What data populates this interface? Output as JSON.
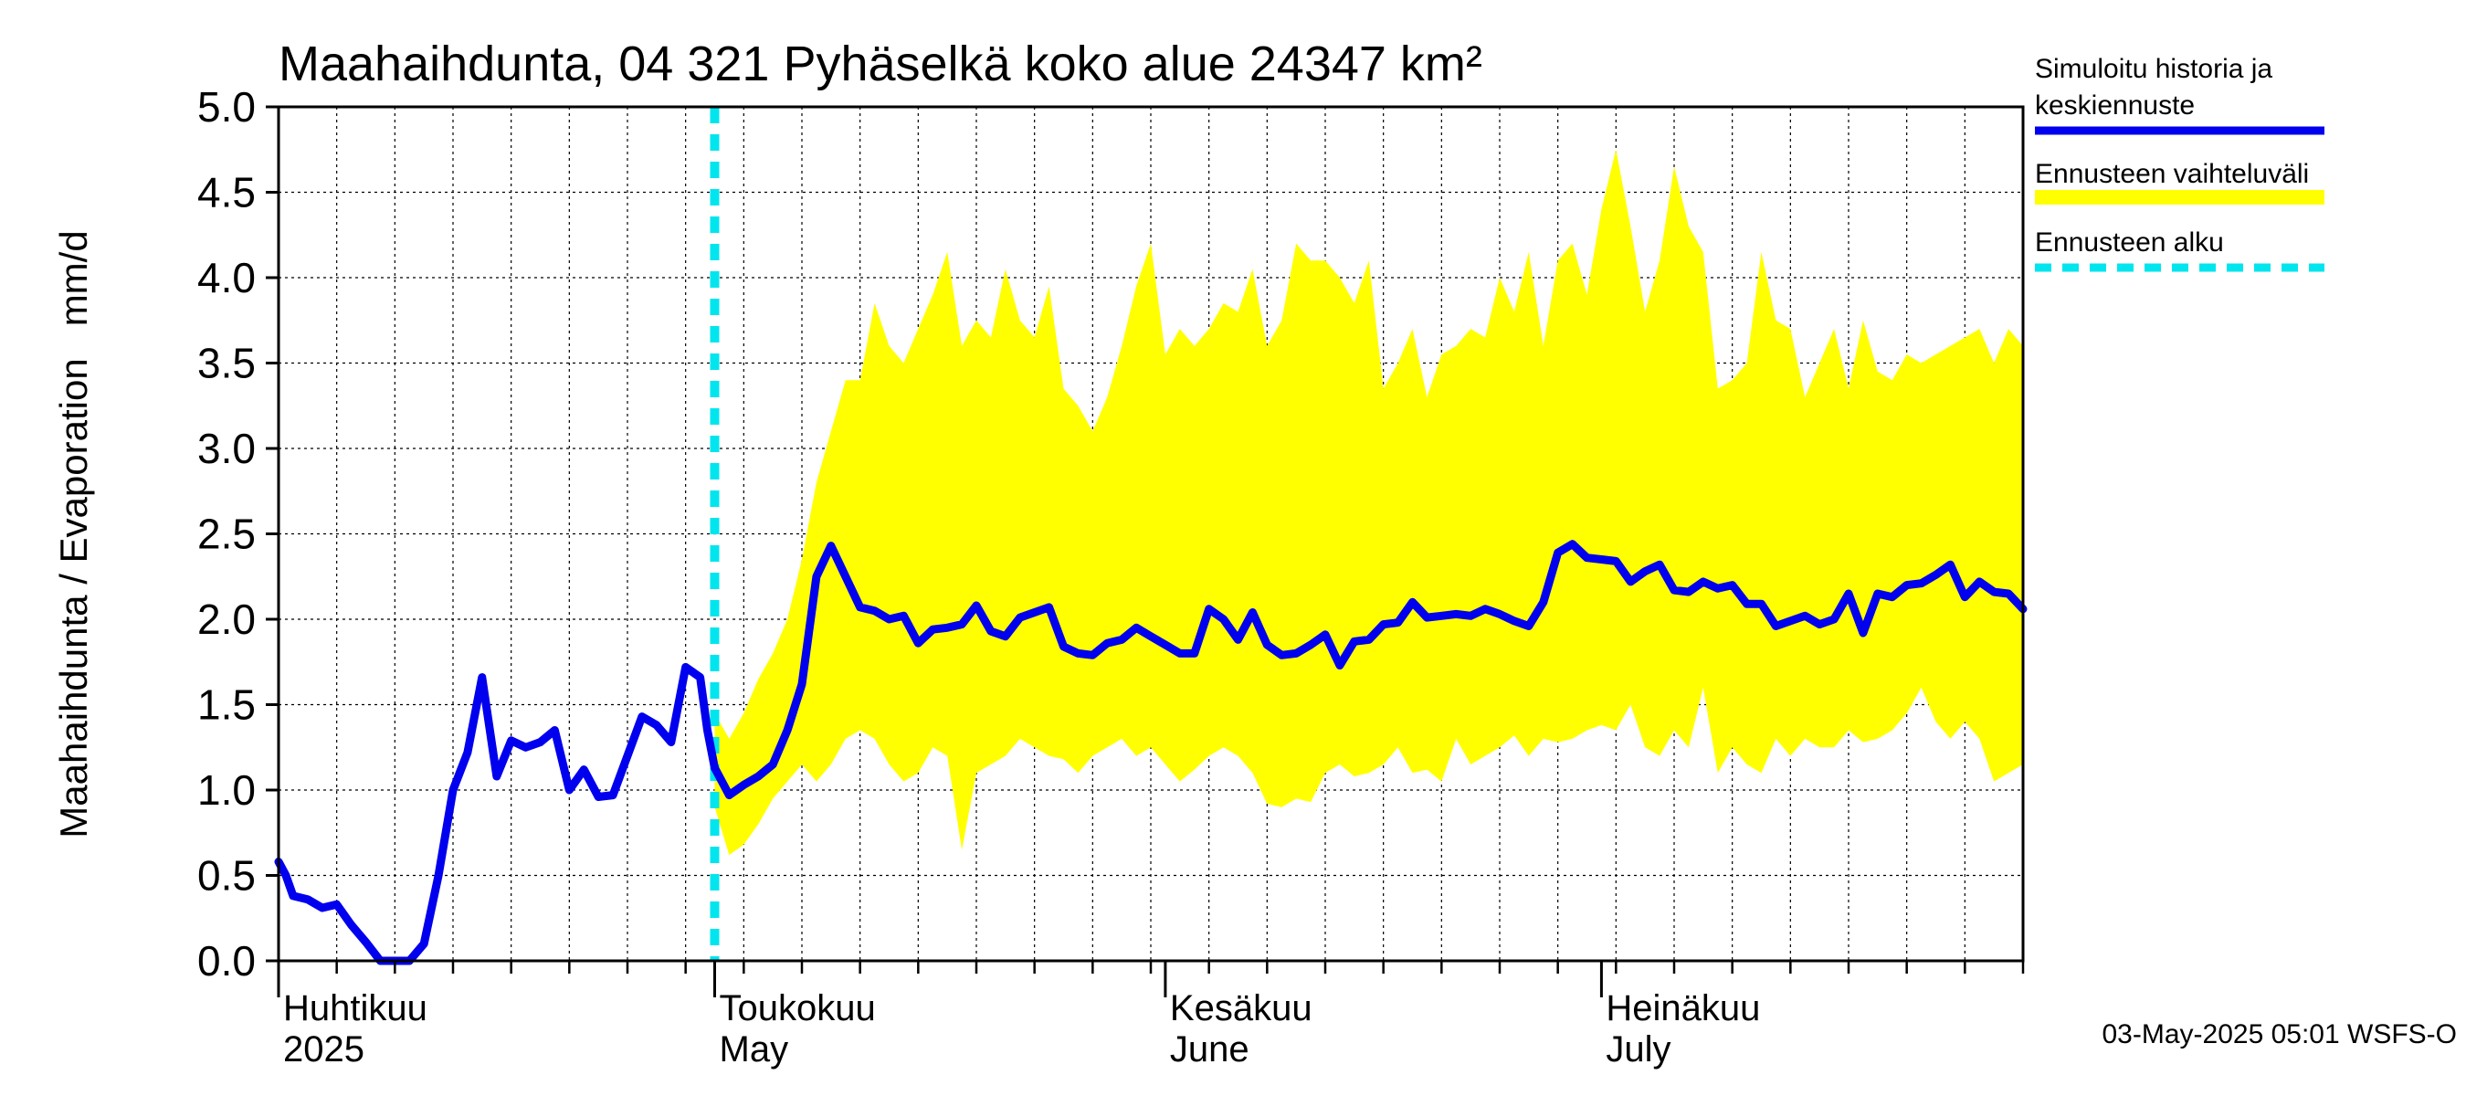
{
  "chart_data": {
    "type": "line",
    "title": "Maahaihdunta, 04 321 Pyhäselkä koko alue 24347 km²",
    "ylabel": "Maahaihdunta / Evaporation   mm/d",
    "ylim": [
      0,
      5
    ],
    "yticks": [
      "0.0",
      "0.5",
      "1.0",
      "1.5",
      "2.0",
      "2.5",
      "3.0",
      "3.5",
      "4.0",
      "4.5",
      "5.0"
    ],
    "x_start_day": 0,
    "x_end_day": 120,
    "forecast_start_day": 30,
    "month_labels": [
      {
        "day": 0,
        "line1": "Huhtikuu",
        "line2": "2025"
      },
      {
        "day": 30,
        "line1": "Toukokuu",
        "line2": "May"
      },
      {
        "day": 61,
        "line1": "Kesäkuu",
        "line2": "June"
      },
      {
        "day": 91,
        "line1": "Heinäkuu",
        "line2": "July"
      }
    ],
    "history": {
      "name": "Simuloitu historia ja keskiennuste",
      "color": "#0000ee",
      "x": [
        0,
        0.5,
        1,
        2,
        3,
        4,
        5,
        6,
        7,
        8,
        9,
        10,
        11,
        12,
        13,
        14,
        15,
        16,
        17,
        18,
        19,
        20,
        21,
        22,
        23,
        24,
        25,
        26,
        27,
        28,
        29,
        29.5,
        30
      ],
      "y": [
        0.58,
        0.5,
        0.38,
        0.36,
        0.31,
        0.33,
        0.21,
        0.11,
        0.0,
        0.0,
        0.0,
        0.1,
        0.5,
        1.0,
        1.22,
        1.66,
        1.08,
        1.29,
        1.25,
        1.28,
        1.35,
        1.0,
        1.12,
        0.96,
        0.97,
        1.2,
        1.43,
        1.38,
        1.28,
        1.72,
        1.66,
        1.35,
        1.13
      ]
    },
    "forecast_mean": {
      "x": [
        30,
        31,
        32,
        33,
        34,
        35,
        36,
        37,
        38,
        39,
        40,
        41,
        42,
        43,
        44,
        45,
        46,
        47,
        48,
        49,
        50,
        51,
        52,
        53,
        54,
        55,
        56,
        57,
        58,
        59,
        60,
        61,
        62,
        63,
        64,
        65,
        66,
        67,
        68,
        69,
        70,
        71,
        72,
        73,
        74,
        75,
        76,
        77,
        78,
        79,
        80,
        81,
        82,
        83,
        84,
        85,
        86,
        87,
        88,
        89,
        90,
        91,
        92,
        93,
        94,
        95,
        96,
        97,
        98,
        99,
        100,
        101,
        102,
        103,
        104,
        105,
        106,
        107,
        108,
        109,
        110,
        111,
        112,
        113,
        114,
        115,
        116,
        117,
        118,
        119,
        120
      ],
      "y": [
        1.13,
        0.97,
        1.03,
        1.08,
        1.15,
        1.35,
        1.62,
        2.25,
        2.43,
        2.25,
        2.07,
        2.05,
        2.0,
        2.02,
        1.86,
        1.94,
        1.95,
        1.97,
        2.08,
        1.93,
        1.9,
        2.01,
        2.04,
        2.07,
        1.84,
        1.8,
        1.79,
        1.86,
        1.88,
        1.95,
        1.9,
        1.85,
        1.8,
        1.8,
        2.06,
        2.0,
        1.88,
        2.04,
        1.85,
        1.79,
        1.8,
        1.85,
        1.91,
        1.73,
        1.87,
        1.88,
        1.97,
        1.98,
        2.1,
        2.01,
        2.02,
        2.03,
        2.02,
        2.06,
        2.03,
        1.99,
        1.96,
        2.1,
        2.39,
        2.44,
        2.36,
        2.35,
        2.34,
        2.22,
        2.28,
        2.32,
        2.17,
        2.16,
        2.22,
        2.18,
        2.2,
        2.09,
        2.09,
        1.96,
        1.99,
        2.02,
        1.97,
        2.0,
        2.15,
        1.92,
        2.15,
        2.13,
        2.2,
        2.21,
        2.26,
        2.32,
        2.13,
        2.22,
        2.16,
        2.15,
        2.06
      ]
    },
    "range_upper": {
      "x": [
        30,
        31,
        32,
        33,
        34,
        35,
        36,
        37,
        38,
        39,
        40,
        41,
        42,
        43,
        44,
        45,
        46,
        47,
        48,
        49,
        50,
        51,
        52,
        53,
        54,
        55,
        56,
        57,
        58,
        59,
        60,
        61,
        62,
        63,
        64,
        65,
        66,
        67,
        68,
        69,
        70,
        71,
        72,
        73,
        74,
        75,
        76,
        77,
        78,
        79,
        80,
        81,
        82,
        83,
        84,
        85,
        86,
        87,
        88,
        89,
        90,
        91,
        92,
        93,
        94,
        95,
        96,
        97,
        98,
        99,
        100,
        101,
        102,
        103,
        104,
        105,
        106,
        107,
        108,
        109,
        110,
        111,
        112,
        113,
        114,
        115,
        116,
        117,
        118,
        119,
        120
      ],
      "y": [
        1.45,
        1.3,
        1.45,
        1.65,
        1.8,
        2.0,
        2.35,
        2.8,
        3.1,
        3.4,
        3.4,
        3.85,
        3.6,
        3.5,
        3.7,
        3.9,
        4.15,
        3.6,
        3.75,
        3.65,
        4.05,
        3.75,
        3.65,
        3.95,
        3.35,
        3.25,
        3.1,
        3.3,
        3.6,
        3.95,
        4.2,
        3.55,
        3.7,
        3.6,
        3.7,
        3.85,
        3.8,
        4.05,
        3.6,
        3.75,
        4.2,
        4.1,
        4.1,
        4.0,
        3.85,
        4.1,
        3.35,
        3.5,
        3.7,
        3.3,
        3.55,
        3.6,
        3.7,
        3.65,
        4.0,
        3.8,
        4.15,
        3.6,
        4.1,
        4.2,
        3.9,
        4.4,
        4.75,
        4.3,
        3.8,
        4.1,
        4.65,
        4.3,
        4.15,
        3.35,
        3.4,
        3.5,
        4.15,
        3.75,
        3.7,
        3.3,
        3.5,
        3.7,
        3.35,
        3.75,
        3.45,
        3.4,
        3.55,
        3.5,
        3.55,
        3.6,
        3.65,
        3.7,
        3.5,
        3.7,
        3.6
      ]
    },
    "range_lower": {
      "x": [
        30,
        31,
        32,
        33,
        34,
        35,
        36,
        37,
        38,
        39,
        40,
        41,
        42,
        43,
        44,
        45,
        46,
        47,
        48,
        49,
        50,
        51,
        52,
        53,
        54,
        55,
        56,
        57,
        58,
        59,
        60,
        61,
        62,
        63,
        64,
        65,
        66,
        67,
        68,
        69,
        70,
        71,
        72,
        73,
        74,
        75,
        76,
        77,
        78,
        79,
        80,
        81,
        82,
        83,
        84,
        85,
        86,
        87,
        88,
        89,
        90,
        91,
        92,
        93,
        94,
        95,
        96,
        97,
        98,
        99,
        100,
        101,
        102,
        103,
        104,
        105,
        106,
        107,
        108,
        109,
        110,
        111,
        112,
        113,
        114,
        115,
        116,
        117,
        118,
        119,
        120
      ],
      "y": [
        0.9,
        0.62,
        0.68,
        0.8,
        0.95,
        1.05,
        1.15,
        1.05,
        1.15,
        1.3,
        1.35,
        1.3,
        1.15,
        1.05,
        1.1,
        1.25,
        1.2,
        0.65,
        1.1,
        1.15,
        1.2,
        1.3,
        1.25,
        1.2,
        1.18,
        1.1,
        1.2,
        1.25,
        1.3,
        1.2,
        1.25,
        1.15,
        1.05,
        1.12,
        1.2,
        1.25,
        1.2,
        1.1,
        0.92,
        0.9,
        0.95,
        0.93,
        1.1,
        1.15,
        1.08,
        1.1,
        1.15,
        1.25,
        1.1,
        1.12,
        1.05,
        1.3,
        1.15,
        1.2,
        1.25,
        1.32,
        1.2,
        1.3,
        1.28,
        1.3,
        1.35,
        1.38,
        1.35,
        1.5,
        1.25,
        1.2,
        1.35,
        1.25,
        1.6,
        1.1,
        1.25,
        1.15,
        1.1,
        1.3,
        1.2,
        1.3,
        1.25,
        1.25,
        1.35,
        1.28,
        1.3,
        1.35,
        1.45,
        1.6,
        1.4,
        1.3,
        1.4,
        1.3,
        1.05,
        1.1,
        1.15
      ]
    },
    "legend": [
      {
        "line1": "Simuloitu historia ja",
        "line2": "keskiennuste",
        "color": "#0000ee",
        "style": "solid"
      },
      {
        "line1": "Ennusteen vaihteluväli",
        "line2": "",
        "color": "#ffff00",
        "style": "solid"
      },
      {
        "line1": "Ennusteen alku",
        "line2": "",
        "color": "#00e5ee",
        "style": "dashed"
      }
    ],
    "colors": {
      "mean": "#0000ee",
      "band": "#ffff00",
      "forecast_start": "#00e5ee",
      "grid": "#000000"
    }
  },
  "footer": "03-May-2025 05:01 WSFS-O"
}
